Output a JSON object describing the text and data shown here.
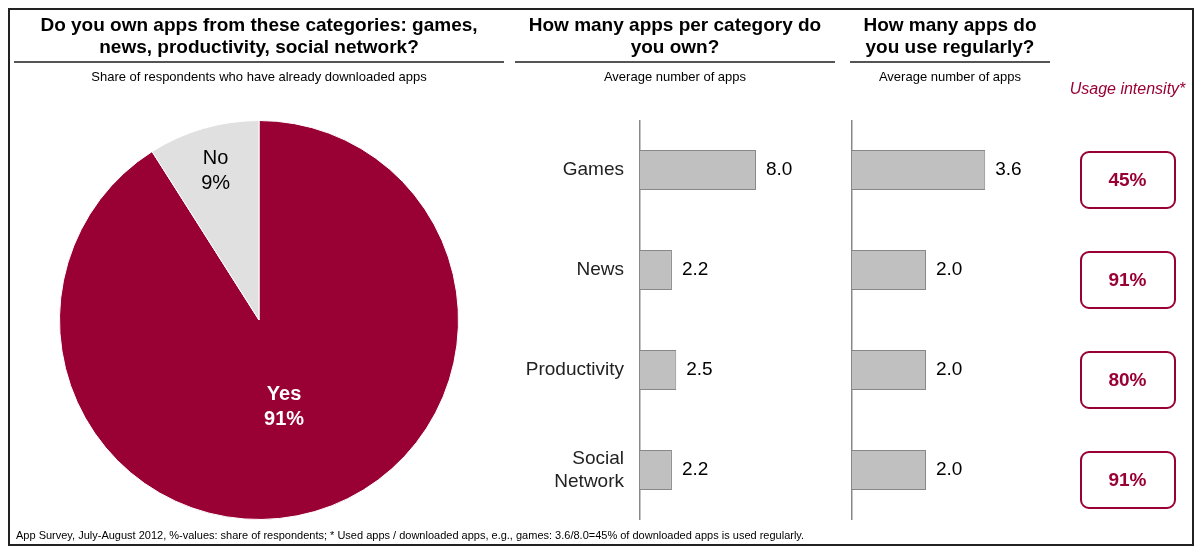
{
  "chart_data": [
    {
      "type": "pie",
      "title": "Do you own apps from these categories: games, news, productivity, social network?",
      "subtitle": "Share of respondents who have already downloaded apps",
      "categories": [
        "Yes",
        "No"
      ],
      "values": [
        91,
        9
      ],
      "colors": [
        "#990033",
        "#e0e0e0"
      ],
      "data_labels": true,
      "value_labels": [
        "91%",
        "9%"
      ],
      "legend": false,
      "annotations": [
        "App Survey, July-August 2012, %-values: share of respondents; * Used apps / downloaded apps, e.g., games: 3.6/8.0=45% of downloaded apps is used regularly."
      ]
    },
    {
      "type": "bar",
      "orientation": "horizontal",
      "title": "How many apps per category do you own?",
      "subtitle": "Average number of apps",
      "categories": [
        "Games",
        "News",
        "Productivity",
        "Social Network"
      ],
      "values": [
        8.0,
        2.2,
        2.5,
        2.2
      ],
      "color": "#c0c0c0",
      "data_labels": true,
      "value_labels": [
        "8.0",
        "2.2",
        "2.5",
        "2.2"
      ],
      "tick_labels": "y",
      "grid": false,
      "legend": false
    },
    {
      "type": "bar",
      "orientation": "horizontal",
      "title": "How many apps do you use regularly?",
      "subtitle": "Average number of apps",
      "categories": [
        null,
        null,
        null,
        null
      ],
      "values": [
        3.6,
        2.0,
        2.0,
        2.0
      ],
      "color": "#c0c0c0",
      "data_labels": true,
      "value_labels": [
        "3.6",
        "2.0",
        "2.0",
        "2.0"
      ],
      "tick_labels": false,
      "grid": false,
      "legend": false
    },
    {
      "type": "other",
      "title": "Usage intensity*",
      "annotations": [
        "45%",
        "91%",
        "80%",
        "91%"
      ]
    }
  ]
}
